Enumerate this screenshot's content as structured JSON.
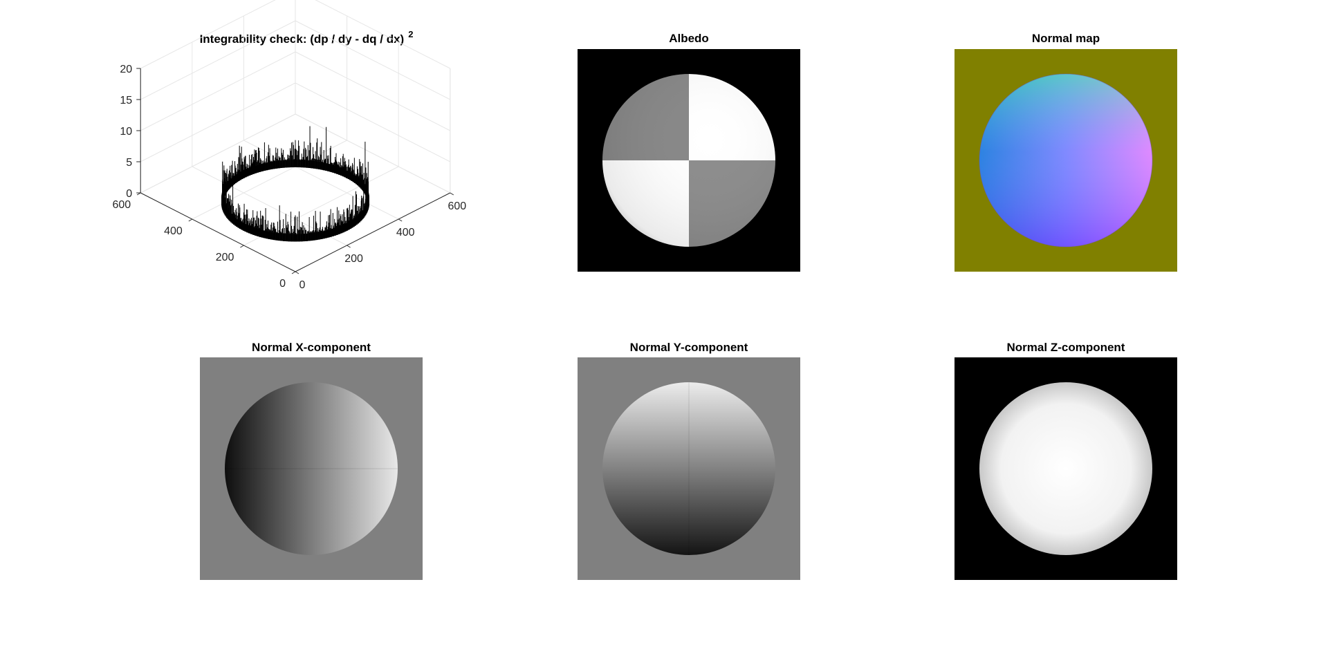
{
  "figure": {
    "panels": [
      {
        "id": "integrability",
        "title_main": "Integrability check: (dp / dy - dq / dx)",
        "title_sup": "2"
      },
      {
        "id": "albedo",
        "title": "Albedo"
      },
      {
        "id": "normal_map",
        "title": "Normal map"
      },
      {
        "id": "normal_x",
        "title": "Normal X-component"
      },
      {
        "id": "normal_y",
        "title": "Normal Y-component"
      },
      {
        "id": "normal_z",
        "title": "Normal Z-component"
      }
    ]
  },
  "colors": {
    "background": "#ffffff",
    "normal_map_bg": "#808000",
    "gray_bg": "#808080",
    "black_bg": "#000000",
    "grid": "#e6e6e6",
    "axis": "#262626"
  },
  "chart_data": [
    {
      "type": "bar3",
      "title": "Integrability check: (dp / dy - dq / dx)",
      "title_superscript": "2",
      "x_ticks": [
        "0",
        "200",
        "400",
        "600"
      ],
      "y_ticks": [
        "0",
        "200",
        "400",
        "600"
      ],
      "z_ticks": [
        "0",
        "5",
        "10",
        "15",
        "20"
      ],
      "xlim": [
        0,
        600
      ],
      "ylim": [
        0,
        600
      ],
      "zlim": [
        0,
        20
      ],
      "ring": {
        "center": [
          256,
          256
        ],
        "radius": 200,
        "typical_max": 5,
        "peak": 9
      },
      "grid": true
    },
    {
      "type": "image",
      "title": "Albedo",
      "background": "#000000",
      "quadrants": {
        "top_left": "gray",
        "top_right": "white",
        "bottom_left": "white",
        "bottom_right": "gray"
      }
    },
    {
      "type": "image",
      "title": "Normal map",
      "background": "#808000"
    },
    {
      "type": "image",
      "title": "Normal X-component",
      "background": "#808080"
    },
    {
      "type": "image",
      "title": "Normal Y-component",
      "background": "#808080"
    },
    {
      "type": "image",
      "title": "Normal Z-component",
      "background": "#000000"
    }
  ]
}
